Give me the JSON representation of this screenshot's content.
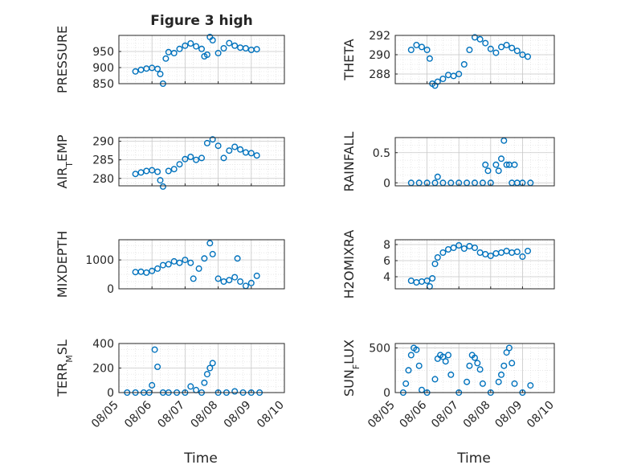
{
  "figure": {
    "title": "Figure 3 high"
  },
  "colors": {
    "marker": "#0072BD",
    "axis": "#262626",
    "grid": "#d9d9d9",
    "background": "#ffffff"
  },
  "chart_data": [
    {
      "type": "scatter",
      "id": "pressure",
      "title": "Figure 3 high",
      "xlabel": "",
      "ylabel": "PRESSURE",
      "xlim": [
        "08/05",
        "08/10"
      ],
      "ylim": [
        850,
        1000
      ],
      "yticks": [
        850,
        900,
        950
      ],
      "grid": true,
      "minor_grid": true,
      "series": [
        {
          "x": [
            "08/05 12:00",
            "08/05 16:00",
            "08/05 20:00",
            "08/06 00:00",
            "08/06 04:00",
            "08/06 06:00",
            "08/06 08:00",
            "08/06 10:00",
            "08/06 12:00",
            "08/06 16:00",
            "08/06 20:00",
            "08/07 00:00",
            "08/07 04:00",
            "08/07 08:00",
            "08/07 12:00",
            "08/07 14:00",
            "08/07 16:00",
            "08/07 18:00",
            "08/07 20:00",
            "08/08 00:00",
            "08/08 04:00",
            "08/08 08:00",
            "08/08 12:00",
            "08/08 16:00",
            "08/08 20:00",
            "08/09 00:00",
            "08/09 04:00"
          ],
          "y": [
            888,
            893,
            897,
            899,
            896,
            880,
            850,
            928,
            948,
            945,
            958,
            968,
            975,
            966,
            958,
            935,
            940,
            995,
            985,
            945,
            960,
            976,
            968,
            962,
            960,
            955,
            957
          ]
        }
      ]
    },
    {
      "type": "scatter",
      "id": "theta",
      "xlabel": "",
      "ylabel": "THETA",
      "xlim": [
        "08/05",
        "08/10"
      ],
      "ylim": [
        287,
        292
      ],
      "yticks": [
        288,
        290,
        292
      ],
      "grid": true,
      "minor_grid": true,
      "series": [
        {
          "x": [
            "08/05 12:00",
            "08/05 16:00",
            "08/05 20:00",
            "08/06 00:00",
            "08/06 02:00",
            "08/06 04:00",
            "08/06 06:00",
            "08/06 08:00",
            "08/06 12:00",
            "08/06 16:00",
            "08/06 20:00",
            "08/07 00:00",
            "08/07 04:00",
            "08/07 08:00",
            "08/07 12:00",
            "08/07 16:00",
            "08/07 20:00",
            "08/08 00:00",
            "08/08 04:00",
            "08/08 08:00",
            "08/08 12:00",
            "08/08 16:00",
            "08/08 20:00",
            "08/09 00:00",
            "08/09 04:00"
          ],
          "y": [
            290.5,
            291.0,
            290.8,
            290.5,
            289.6,
            287.0,
            286.8,
            287.2,
            287.5,
            287.9,
            287.8,
            288.0,
            289.0,
            290.5,
            291.8,
            291.6,
            291.2,
            290.6,
            290.2,
            290.8,
            291.0,
            290.7,
            290.4,
            290.0,
            289.8
          ]
        }
      ]
    },
    {
      "type": "scatter",
      "id": "air_temp",
      "xlabel": "",
      "ylabel": "AIR_TEMP",
      "xlim": [
        "08/05",
        "08/10"
      ],
      "ylim": [
        278,
        291
      ],
      "yticks": [
        280,
        285,
        290
      ],
      "grid": true,
      "minor_grid": true,
      "series": [
        {
          "x": [
            "08/05 12:00",
            "08/05 16:00",
            "08/05 20:00",
            "08/06 00:00",
            "08/06 04:00",
            "08/06 06:00",
            "08/06 08:00",
            "08/06 12:00",
            "08/06 16:00",
            "08/06 20:00",
            "08/07 00:00",
            "08/07 04:00",
            "08/07 08:00",
            "08/07 12:00",
            "08/07 16:00",
            "08/07 20:00",
            "08/08 00:00",
            "08/08 04:00",
            "08/08 08:00",
            "08/08 12:00",
            "08/08 16:00",
            "08/08 20:00",
            "08/09 00:00",
            "08/09 04:00"
          ],
          "y": [
            281.2,
            281.6,
            282.0,
            282.2,
            281.8,
            279.5,
            277.8,
            282.0,
            282.5,
            283.8,
            285.2,
            285.8,
            285.0,
            285.5,
            289.5,
            290.5,
            288.8,
            285.5,
            287.5,
            288.5,
            287.8,
            287.0,
            286.8,
            286.2
          ]
        }
      ]
    },
    {
      "type": "scatter",
      "id": "rainfall",
      "xlabel": "",
      "ylabel": "RAINFALL",
      "xlim": [
        "08/05",
        "08/10"
      ],
      "ylim": [
        -0.05,
        0.75
      ],
      "yticks": [
        0,
        0.5
      ],
      "grid": true,
      "minor_grid": true,
      "series": [
        {
          "x": [
            "08/05 12:00",
            "08/05 18:00",
            "08/06 00:00",
            "08/06 06:00",
            "08/06 08:00",
            "08/06 12:00",
            "08/06 18:00",
            "08/07 00:00",
            "08/07 06:00",
            "08/07 12:00",
            "08/07 18:00",
            "08/07 20:00",
            "08/07 22:00",
            "08/08 00:00",
            "08/08 04:00",
            "08/08 06:00",
            "08/08 08:00",
            "08/08 10:00",
            "08/08 12:00",
            "08/08 14:00",
            "08/08 16:00",
            "08/08 18:00",
            "08/08 20:00",
            "08/09 00:00",
            "08/09 06:00"
          ],
          "y": [
            0,
            0,
            0,
            0,
            0.1,
            0,
            0,
            0,
            0,
            0,
            0,
            0.3,
            0.2,
            0,
            0.3,
            0.2,
            0.4,
            0.7,
            0.3,
            0.3,
            0,
            0.3,
            0,
            0,
            0
          ]
        }
      ]
    },
    {
      "type": "scatter",
      "id": "mixdepth",
      "xlabel": "",
      "ylabel": "MIXDEPTH",
      "xlim": [
        "08/05",
        "08/10"
      ],
      "ylim": [
        0,
        1700
      ],
      "yticks": [
        0,
        1000
      ],
      "grid": true,
      "minor_grid": true,
      "series": [
        {
          "x": [
            "08/05 12:00",
            "08/05 16:00",
            "08/05 20:00",
            "08/06 00:00",
            "08/06 04:00",
            "08/06 08:00",
            "08/06 12:00",
            "08/06 16:00",
            "08/06 20:00",
            "08/07 00:00",
            "08/07 04:00",
            "08/07 06:00",
            "08/07 10:00",
            "08/07 14:00",
            "08/07 18:00",
            "08/07 20:00",
            "08/08 00:00",
            "08/08 04:00",
            "08/08 08:00",
            "08/08 12:00",
            "08/08 14:00",
            "08/08 16:00",
            "08/08 20:00",
            "08/09 00:00",
            "08/09 04:00"
          ],
          "y": [
            580,
            590,
            560,
            620,
            700,
            820,
            850,
            950,
            900,
            1000,
            900,
            350,
            700,
            1050,
            1580,
            1200,
            350,
            250,
            300,
            400,
            1050,
            250,
            100,
            200,
            450
          ]
        }
      ]
    },
    {
      "type": "scatter",
      "id": "h2omixra",
      "xlabel": "",
      "ylabel": "H2OMIXRA",
      "xlim": [
        "08/05",
        "08/10"
      ],
      "ylim": [
        2.5,
        8.6
      ],
      "yticks": [
        4,
        6,
        8
      ],
      "grid": true,
      "minor_grid": true,
      "series": [
        {
          "x": [
            "08/05 12:00",
            "08/05 16:00",
            "08/05 20:00",
            "08/06 00:00",
            "08/06 02:00",
            "08/06 04:00",
            "08/06 06:00",
            "08/06 08:00",
            "08/06 12:00",
            "08/06 16:00",
            "08/06 20:00",
            "08/07 00:00",
            "08/07 04:00",
            "08/07 08:00",
            "08/07 12:00",
            "08/07 16:00",
            "08/07 20:00",
            "08/08 00:00",
            "08/08 04:00",
            "08/08 08:00",
            "08/08 12:00",
            "08/08 16:00",
            "08/08 20:00",
            "08/09 00:00",
            "08/09 04:00"
          ],
          "y": [
            3.5,
            3.3,
            3.4,
            3.5,
            2.8,
            3.8,
            5.6,
            6.4,
            7.0,
            7.4,
            7.6,
            7.9,
            7.5,
            7.8,
            7.6,
            7.0,
            6.8,
            6.6,
            6.9,
            7.0,
            7.2,
            7.0,
            7.1,
            6.5,
            7.2
          ]
        }
      ]
    },
    {
      "type": "scatter",
      "id": "terr_msl",
      "xlabel": "Time",
      "ylabel": "TERR_MSL",
      "xlim": [
        "08/05",
        "08/10"
      ],
      "ylim": [
        0,
        400
      ],
      "xticks": [
        "08/05",
        "08/06",
        "08/07",
        "08/08",
        "08/09",
        "08/10"
      ],
      "yticks": [
        0,
        200,
        400
      ],
      "grid": true,
      "minor_grid": true,
      "series": [
        {
          "x": [
            "08/05 06:00",
            "08/05 12:00",
            "08/05 18:00",
            "08/05 22:00",
            "08/06 00:00",
            "08/06 02:00",
            "08/06 04:00",
            "08/06 08:00",
            "08/06 12:00",
            "08/06 18:00",
            "08/07 00:00",
            "08/07 04:00",
            "08/07 08:00",
            "08/07 12:00",
            "08/07 14:00",
            "08/07 16:00",
            "08/07 18:00",
            "08/07 20:00",
            "08/08 00:00",
            "08/08 06:00",
            "08/08 12:00",
            "08/08 18:00",
            "08/09 00:00",
            "08/09 06:00"
          ],
          "y": [
            0,
            0,
            0,
            0,
            60,
            350,
            210,
            0,
            0,
            0,
            0,
            50,
            20,
            0,
            80,
            150,
            200,
            240,
            0,
            0,
            10,
            0,
            0,
            0
          ]
        }
      ]
    },
    {
      "type": "scatter",
      "id": "sun_flux",
      "xlabel": "Time",
      "ylabel": "SUN_FLUX",
      "xlim": [
        "08/05",
        "08/10"
      ],
      "ylim": [
        0,
        550
      ],
      "xticks": [
        "08/05",
        "08/06",
        "08/07",
        "08/08",
        "08/09",
        "08/10"
      ],
      "yticks": [
        0,
        500
      ],
      "grid": true,
      "minor_grid": true,
      "series": [
        {
          "x": [
            "08/05 06:00",
            "08/05 08:00",
            "08/05 10:00",
            "08/05 12:00",
            "08/05 14:00",
            "08/05 16:00",
            "08/05 18:00",
            "08/05 20:00",
            "08/06 00:00",
            "08/06 06:00",
            "08/06 08:00",
            "08/06 10:00",
            "08/06 12:00",
            "08/06 14:00",
            "08/06 16:00",
            "08/06 18:00",
            "08/07 00:00",
            "08/07 06:00",
            "08/07 08:00",
            "08/07 10:00",
            "08/07 12:00",
            "08/07 14:00",
            "08/07 16:00",
            "08/07 18:00",
            "08/08 00:00",
            "08/08 06:00",
            "08/08 08:00",
            "08/08 10:00",
            "08/08 12:00",
            "08/08 14:00",
            "08/08 16:00",
            "08/08 18:00",
            "08/09 00:00",
            "08/09 06:00"
          ],
          "y": [
            0,
            100,
            250,
            420,
            500,
            480,
            300,
            30,
            0,
            150,
            380,
            420,
            400,
            350,
            420,
            200,
            0,
            120,
            300,
            420,
            390,
            330,
            260,
            100,
            0,
            120,
            200,
            300,
            450,
            500,
            330,
            100,
            0,
            80
          ]
        }
      ]
    }
  ]
}
